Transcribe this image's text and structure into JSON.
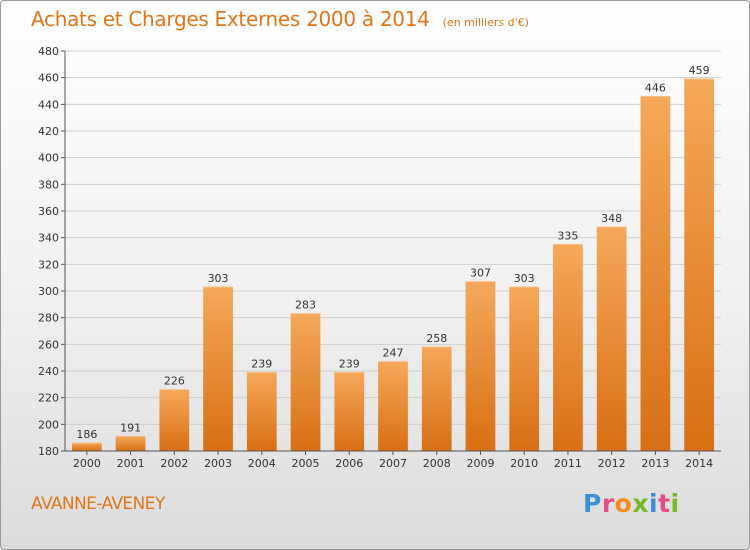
{
  "header": {
    "title": "Achats et Charges Externes 2000 à 2014",
    "unit": "(en milliers d'€)"
  },
  "footer": {
    "commune": "AVANNE-AVENEY",
    "logo_letters": [
      "P",
      "r",
      "o",
      "x",
      "i",
      "t",
      "i"
    ],
    "logo_colors": [
      "#3b8fd4",
      "#e84d8a",
      "#f28c1d",
      "#78b829",
      "#3b8fd4",
      "#e84d8a",
      "#78b829"
    ]
  },
  "colors": {
    "accent": "#e0761a",
    "bar_top": "#f5a85a",
    "bar_bottom": "#d86f14",
    "grid": "#cfcfcf",
    "text": "#333333"
  },
  "chart_data": {
    "type": "bar",
    "title": "Achats et Charges Externes 2000 à 2014",
    "subtitle": "(en milliers d'€)",
    "categories": [
      "2000",
      "2001",
      "2002",
      "2003",
      "2004",
      "2005",
      "2006",
      "2007",
      "2008",
      "2009",
      "2010",
      "2011",
      "2012",
      "2013",
      "2014"
    ],
    "values": [
      186,
      191,
      226,
      303,
      239,
      283,
      239,
      247,
      258,
      307,
      303,
      335,
      348,
      446,
      459
    ],
    "ylim": [
      180,
      480
    ],
    "yticks": [
      180,
      200,
      220,
      240,
      260,
      280,
      300,
      320,
      340,
      360,
      380,
      400,
      420,
      440,
      460,
      480
    ],
    "xlabel": "",
    "ylabel": "",
    "grid": true,
    "legend": "none"
  }
}
